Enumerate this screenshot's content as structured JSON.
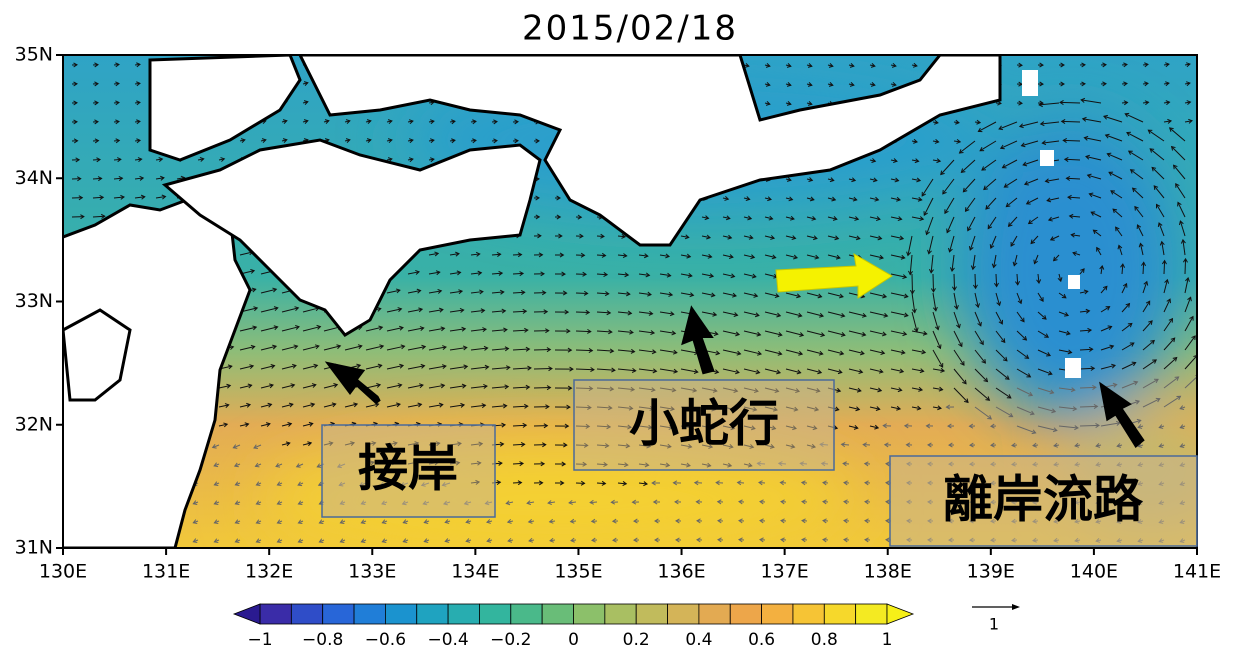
{
  "title": "2015/02/18",
  "latitude_labels": [
    "35N",
    "34N",
    "33N",
    "32N",
    "31N"
  ],
  "longitude_labels": [
    "130E",
    "131E",
    "132E",
    "133E",
    "134E",
    "135E",
    "136E",
    "137E",
    "138E",
    "139E",
    "140E",
    "141E"
  ],
  "colorbar": {
    "labels": [
      "−1",
      "−0.8",
      "−0.6",
      "−0.4",
      "−0.2",
      "0",
      "0.2",
      "0.4",
      "0.6",
      "0.8",
      "1"
    ]
  },
  "vector_reference": {
    "label": "1"
  },
  "annotations": [
    "接岸",
    "小蛇行",
    "離岸流路"
  ]
}
